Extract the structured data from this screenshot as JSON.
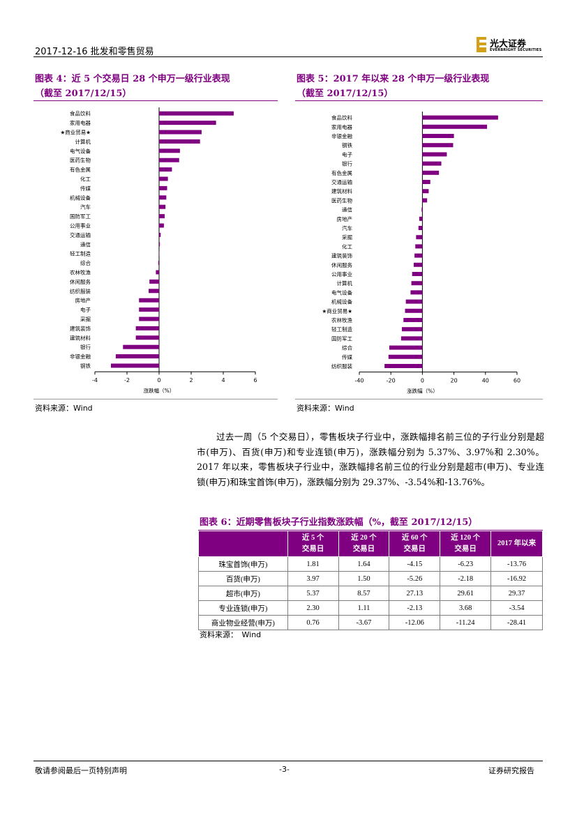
{
  "header": {
    "date_section": "2017-12-16   批发和零售贸易",
    "logo_cn": "光大证券",
    "logo_en": "EVERBRIGHT SECURITIES",
    "logo_color": "#d4a017"
  },
  "fig4": {
    "title_line1": "图表 4：近 5 个交易日 28 个申万一级行业表现",
    "title_line2": "（截至 2017/12/15）",
    "source": "资料来源：Wind"
  },
  "fig5": {
    "title_line1": "图表 5：2017 年以来 28 个申万一级行业表现",
    "title_line2": "（截至 2017/12/15）",
    "source": "资料来源：Wind"
  },
  "chart_data": [
    {
      "type": "bar",
      "orientation": "horizontal",
      "color": "#7f0080",
      "categories": [
        "食品饮料",
        "家用电器",
        "★商业贸易★",
        "计算机",
        "电气设备",
        "医药生物",
        "有色金属",
        "化工",
        "传媒",
        "机械设备",
        "汽车",
        "国防军工",
        "公用事业",
        "交通运输",
        "通信",
        "轻工制造",
        "综合",
        "农林牧渔",
        "休闲服务",
        "纺织服装",
        "房地产",
        "电子",
        "采掘",
        "建筑装饰",
        "建筑材料",
        "银行",
        "非银金融",
        "钢铁"
      ],
      "values": [
        4.65,
        3.55,
        2.65,
        2.55,
        1.3,
        1.25,
        0.8,
        0.55,
        0.5,
        0.45,
        0.4,
        0.35,
        0.3,
        0.1,
        0.05,
        0.0,
        -0.05,
        -0.2,
        -0.6,
        -0.65,
        -1.25,
        -1.25,
        -1.25,
        -1.45,
        -1.45,
        -2.25,
        -2.7,
        -3.0
      ],
      "xlim": [
        -4,
        6
      ],
      "xticks": [
        "-4",
        "-2",
        "0",
        "2",
        "4",
        "6"
      ],
      "xlabel": "涨跌幅（%）"
    },
    {
      "type": "bar",
      "orientation": "horizontal",
      "color": "#7f0080",
      "categories": [
        "食品饮料",
        "家用电器",
        "非银金融",
        "钢铁",
        "电子",
        "银行",
        "有色金属",
        "交通运输",
        "建筑材料",
        "医药生物",
        "通信",
        "房地产",
        "汽车",
        "采掘",
        "化工",
        "建筑装饰",
        "休闲服务",
        "公用事业",
        "计算机",
        "电气设备",
        "机械设备",
        "★商业贸易★",
        "农林牧渔",
        "轻工制造",
        "国防军工",
        "综合",
        "传媒",
        "纺织服装"
      ],
      "values": [
        48,
        41,
        20,
        19.5,
        15.5,
        12,
        10.5,
        5,
        4,
        3,
        -0.5,
        -2,
        -2.5,
        -4,
        -4.5,
        -5,
        -5.5,
        -6.5,
        -7,
        -7.5,
        -10.5,
        -11,
        -12,
        -13,
        -13.5,
        -21,
        -21.5,
        -24
      ],
      "xlim": [
        -40,
        60
      ],
      "xticks": [
        "-40",
        "-20",
        "0",
        "20",
        "40",
        "60"
      ],
      "xlabel": "涨跌幅（%）"
    }
  ],
  "paragraph": "过去一周（5 个交易日），零售板块子行业中，涨跌幅排名前三位的子行业分别是超市(申万)、百货(申万)和专业连锁(申万)，涨跌幅分别为 5.37%、3.97%和 2.30%。2017 年以来，零售板块子行业中，涨跌幅排名前三位的行业分别是超市(申万)、专业连锁(申万)和珠宝首饰(申万)，涨跌幅分别为 29.37%、-3.54%和-13.76%。",
  "fig6": {
    "title": "图表 6：近期零售板块子行业指数涨跌幅（%，截至 2017/12/15）",
    "headers": [
      "",
      "近 5 个\n交易日",
      "近 20 个\n交易日",
      "近 60 个\n交易日",
      "近 120 个\n交易日",
      "2017 年以来"
    ],
    "rows": [
      [
        "珠宝首饰(申万)",
        "1.81",
        "1.64",
        "-4.15",
        "-6.23",
        "-13.76"
      ],
      [
        "百货(申万)",
        "3.97",
        "1.50",
        "-5.26",
        "-2.18",
        "-16.92"
      ],
      [
        "超市(申万)",
        "5.37",
        "8.57",
        "27.13",
        "29.61",
        "29.37"
      ],
      [
        "专业连锁(申万)",
        "2.30",
        "1.11",
        "-2.13",
        "3.68",
        "-3.54"
      ],
      [
        "商业物业经营(申万)",
        "0.76",
        "-3.67",
        "-12.06",
        "-11.24",
        "-28.41"
      ]
    ],
    "source": "资料来源：　Wind"
  },
  "footer": {
    "left": "敬请参阅最后一页特别声明",
    "center": "-3-",
    "right": "证券研究报告"
  }
}
